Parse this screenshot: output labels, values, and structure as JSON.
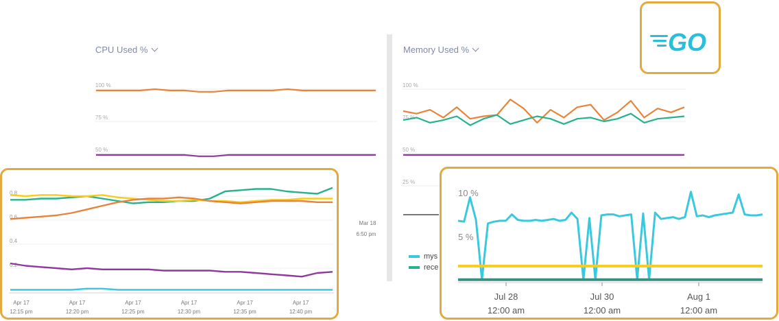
{
  "panels": {
    "cpu": {
      "title": "CPU Used %"
    },
    "memory": {
      "title": "Memory Used %"
    }
  },
  "logo": {
    "name": "go-gopher-logo",
    "text": "GO",
    "color": "#29beda"
  },
  "colors": {
    "orange": "#e8833a",
    "purple": "#8e3a9d",
    "teal": "#26b28c",
    "yellow": "#f6cd1d",
    "cyan": "#3ac8df",
    "frame": "#e3a93e"
  },
  "chart_data": [
    {
      "type": "line",
      "title": "CPU Used %",
      "yticks": [
        "100 %",
        "75 %",
        "50 %"
      ],
      "ylim": [
        0,
        100
      ],
      "xticks": [
        {
          "date": "Mar 18",
          "time": "6:50 pm"
        }
      ],
      "series": [
        {
          "values": [
            99,
            99,
            99,
            99,
            100,
            99,
            99,
            98,
            98,
            99,
            99,
            99,
            99,
            100,
            99,
            99,
            99,
            99,
            99,
            99
          ]
        },
        {
          "values": [
            49,
            49,
            49,
            49,
            49,
            49,
            49,
            48,
            48,
            49,
            49,
            49,
            49,
            49,
            49,
            49,
            49,
            49,
            49,
            49
          ]
        }
      ]
    },
    {
      "type": "line",
      "title": "Memory Used %",
      "yticks": [
        "100 %",
        "75 %",
        "50 %",
        "25 %"
      ],
      "ylim": [
        0,
        100
      ],
      "legend": [
        "mys",
        "rece"
      ],
      "series": [
        {
          "values": [
            83,
            81,
            84,
            78,
            86,
            77,
            79,
            80,
            92,
            85,
            74,
            84,
            78,
            86,
            88,
            76,
            82,
            91,
            78,
            85,
            82,
            86
          ]
        },
        {
          "values": [
            76,
            78,
            74,
            76,
            79,
            72,
            77,
            80,
            73,
            76,
            79,
            77,
            73,
            77,
            78,
            75,
            77,
            81,
            74,
            77,
            78,
            79
          ]
        },
        {
          "values": [
            49,
            49,
            49,
            49,
            49,
            49,
            49,
            49,
            49,
            49,
            49,
            49,
            49,
            49,
            49,
            49,
            49,
            49,
            49,
            49,
            49,
            49
          ]
        }
      ]
    },
    {
      "type": "line",
      "yticks": [
        "0.8",
        "0.6",
        "0.4",
        "0.2"
      ],
      "ylim": [
        0.0,
        0.9
      ],
      "xticks": [
        {
          "date": "Apr 17",
          "time": "12:15 pm"
        },
        {
          "date": "Apr 17",
          "time": "12:20 pm"
        },
        {
          "date": "Apr 17",
          "time": "12:25 pm"
        },
        {
          "date": "Apr 17",
          "time": "12:30 pm"
        },
        {
          "date": "Apr 17",
          "time": "12:35 pm"
        },
        {
          "date": "Apr 17",
          "time": "12:40 pm"
        }
      ],
      "series": [
        {
          "values": [
            0.77,
            0.77,
            0.78,
            0.78,
            0.79,
            0.8,
            0.78,
            0.76,
            0.74,
            0.75,
            0.75,
            0.76,
            0.76,
            0.78,
            0.84,
            0.85,
            0.86,
            0.86,
            0.84,
            0.83,
            0.82,
            0.87
          ]
        },
        {
          "values": [
            0.81,
            0.8,
            0.81,
            0.81,
            0.8,
            0.8,
            0.81,
            0.79,
            0.78,
            0.77,
            0.76,
            0.76,
            0.77,
            0.76,
            0.76,
            0.75,
            0.76,
            0.77,
            0.77,
            0.78,
            0.78,
            0.78
          ]
        },
        {
          "values": [
            0.61,
            0.62,
            0.63,
            0.64,
            0.66,
            0.69,
            0.72,
            0.75,
            0.77,
            0.78,
            0.78,
            0.79,
            0.78,
            0.76,
            0.75,
            0.74,
            0.75,
            0.76,
            0.76,
            0.76,
            0.75,
            0.75
          ]
        },
        {
          "values": [
            0.24,
            0.22,
            0.21,
            0.2,
            0.19,
            0.2,
            0.19,
            0.19,
            0.19,
            0.19,
            0.18,
            0.18,
            0.18,
            0.18,
            0.17,
            0.17,
            0.16,
            0.15,
            0.14,
            0.13,
            0.16,
            0.17
          ]
        },
        {
          "values": [
            0.02,
            0.02,
            0.02,
            0.02,
            0.02,
            0.03,
            0.03,
            0.02,
            0.02,
            0.02,
            0.02,
            0.02,
            0.02,
            0.02,
            0.02,
            0.02,
            0.02,
            0.02,
            0.02,
            0.02,
            0.02,
            0.02
          ]
        }
      ]
    },
    {
      "type": "line",
      "yticks": [
        "10 %",
        "5 %"
      ],
      "ylim": [
        0,
        12
      ],
      "xticks": [
        {
          "date": "Jul 28",
          "time": "12:00 am"
        },
        {
          "date": "Jul 30",
          "time": "12:00 am"
        },
        {
          "date": "Aug 1",
          "time": "12:00 am"
        }
      ],
      "series": [
        {
          "values": [
            6.6,
            6.5,
            9.2,
            6.7,
            0.1,
            6.3,
            6.5,
            6.6,
            6.6,
            7.3,
            6.7,
            6.6,
            6.6,
            6.7,
            6.6,
            6.7,
            6.8,
            6.6,
            6.7,
            7.5,
            6.8,
            0.1,
            6.9,
            0.1,
            7.2,
            7.3,
            7.3,
            7.1,
            7.2,
            7.3,
            0.1,
            7.4,
            0.1,
            7.5,
            6.8,
            6.9,
            7.0,
            6.8,
            7.0,
            9.8,
            7.1,
            7.2,
            7.0,
            7.2,
            7.3,
            7.4,
            7.5,
            9.5,
            7.3,
            7.2,
            7.2,
            7.3
          ]
        },
        {
          "values": [
            1.6,
            1.6,
            1.6,
            1.6,
            1.6,
            1.6,
            1.6,
            1.6
          ]
        },
        {
          "values": [
            0.1,
            0.1,
            0.1,
            0.1,
            0.1,
            0.1,
            0.1,
            0.1
          ]
        }
      ]
    }
  ]
}
